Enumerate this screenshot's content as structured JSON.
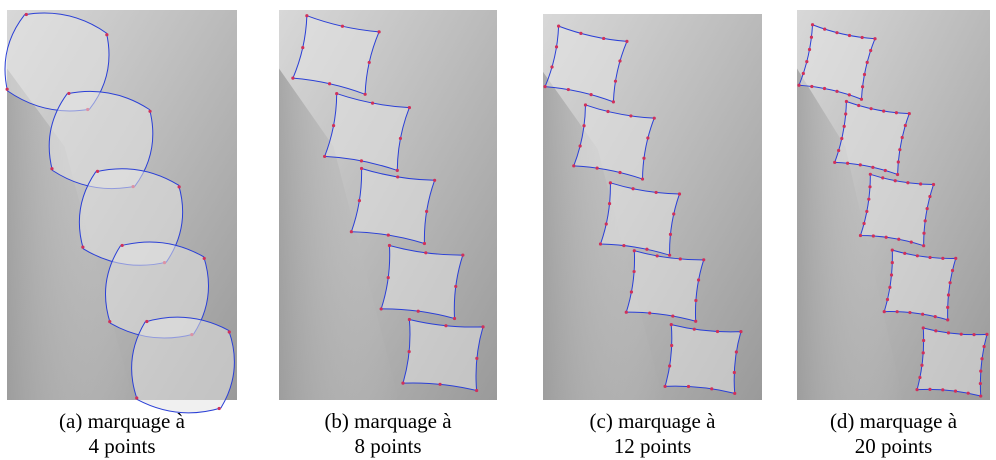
{
  "figures": [
    {
      "caption_line1": "(a) marquage à",
      "caption_line2": "4 points"
    },
    {
      "caption_line1": "(b) marquage à",
      "caption_line2": "8 points"
    },
    {
      "caption_line1": "(c) marquage à",
      "caption_line2": "12 points"
    },
    {
      "caption_line1": "(d) marquage à",
      "caption_line2": "20 points"
    }
  ]
}
